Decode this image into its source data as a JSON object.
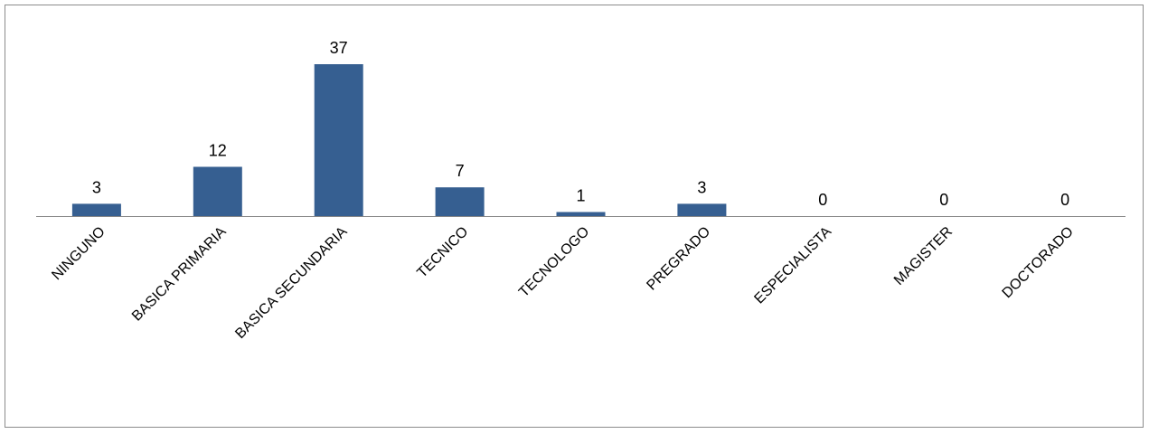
{
  "chart_data": {
    "type": "bar",
    "title": "",
    "xlabel": "",
    "ylabel": "",
    "categories": [
      "NINGUNO",
      "BASICA PRIMARIA",
      "BASICA SECUNDARIA",
      "TECNICO",
      "TECNOLOGO",
      "PREGRADO",
      "ESPECIALISTA",
      "MAGISTER",
      "DOCTORADO"
    ],
    "values": [
      3,
      12,
      37,
      7,
      1,
      3,
      0,
      0,
      0
    ],
    "ylim": [
      0,
      40
    ],
    "grid": false,
    "legend": "none",
    "data_labels": true,
    "bar_color": "#365f91",
    "axis_color": "#868686"
  }
}
